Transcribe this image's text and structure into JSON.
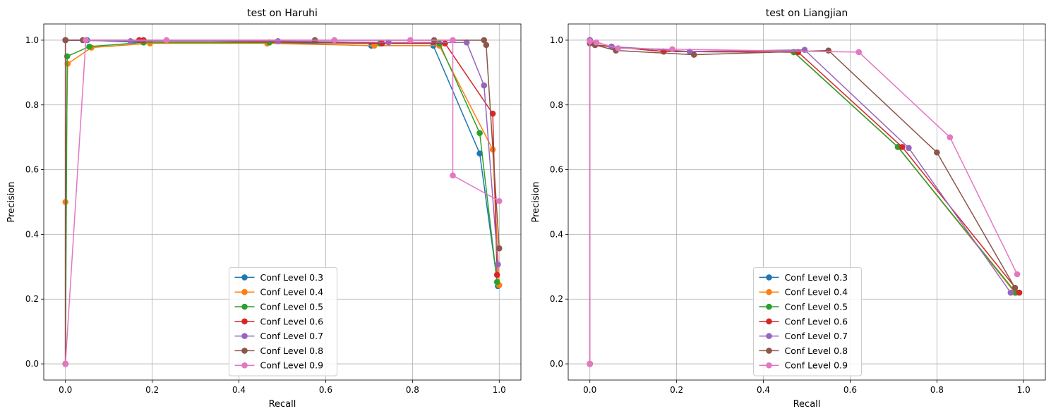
{
  "chart_data": [
    {
      "type": "line",
      "title": "test on Haruhi",
      "xlabel": "Recall",
      "ylabel": "Precision",
      "xlim": [
        -0.05,
        1.05
      ],
      "ylim": [
        -0.05,
        1.05
      ],
      "xticks": [
        "0.0",
        "0.2",
        "0.4",
        "0.6",
        "0.8",
        "1.0"
      ],
      "yticks": [
        "0.0",
        "0.2",
        "0.4",
        "0.6",
        "0.8",
        "1.0"
      ],
      "grid": true,
      "legend_position": "lower center",
      "series": [
        {
          "name": "Conf Level 0.3",
          "color": "#1f77b4",
          "points": [
            [
              0,
              0
            ],
            [
              0,
              1.0
            ],
            [
              0.05,
              1.0
            ],
            [
              0.18,
              0.993
            ],
            [
              0.47,
              0.993
            ],
            [
              0.705,
              0.983
            ],
            [
              0.848,
              0.983
            ],
            [
              0.955,
              0.65
            ],
            [
              0.997,
              0.24
            ]
          ]
        },
        {
          "name": "Conf Level 0.4",
          "color": "#ff7f0e",
          "points": [
            [
              0,
              0
            ],
            [
              0,
              0.5
            ],
            [
              0.005,
              0.927
            ],
            [
              0.06,
              0.977
            ],
            [
              0.195,
              0.99
            ],
            [
              0.465,
              0.99
            ],
            [
              0.712,
              0.983
            ],
            [
              0.862,
              0.983
            ],
            [
              0.985,
              0.662
            ],
            [
              1.0,
              0.243
            ]
          ]
        },
        {
          "name": "Conf Level 0.5",
          "color": "#2ca02c",
          "points": [
            [
              0,
              0
            ],
            [
              0.004,
              0.95
            ],
            [
              0.055,
              0.98
            ],
            [
              0.18,
              0.993
            ],
            [
              0.47,
              0.993
            ],
            [
              0.725,
              0.99
            ],
            [
              0.862,
              0.99
            ],
            [
              0.955,
              0.713
            ],
            [
              0.995,
              0.253
            ]
          ]
        },
        {
          "name": "Conf Level 0.6",
          "color": "#d62728",
          "points": [
            [
              0,
              0
            ],
            [
              0,
              1.0
            ],
            [
              0.17,
              1.0
            ],
            [
              0.18,
              1.0
            ],
            [
              0.73,
              0.99
            ],
            [
              0.875,
              0.99
            ],
            [
              0.985,
              0.773
            ],
            [
              0.995,
              0.275
            ]
          ]
        },
        {
          "name": "Conf Level 0.7",
          "color": "#9467bd",
          "points": [
            [
              0,
              0
            ],
            [
              0,
              1.0
            ],
            [
              0.15,
              0.997
            ],
            [
              0.49,
              0.997
            ],
            [
              0.745,
              0.993
            ],
            [
              0.925,
              0.993
            ],
            [
              0.965,
              0.86
            ],
            [
              0.997,
              0.307
            ]
          ]
        },
        {
          "name": "Conf Level 0.8",
          "color": "#8c564b",
          "points": [
            [
              0,
              0
            ],
            [
              0,
              1.0
            ],
            [
              0.04,
              1.0
            ],
            [
              0.575,
              1.0
            ],
            [
              0.85,
              1.0
            ],
            [
              0.965,
              1.0
            ],
            [
              0.97,
              0.985
            ],
            [
              1.0,
              0.357
            ]
          ]
        },
        {
          "name": "Conf Level 0.9",
          "color": "#e377c2",
          "points": [
            [
              0,
              0
            ],
            [
              0.047,
              1.0
            ],
            [
              0.233,
              1.0
            ],
            [
              0.62,
              1.0
            ],
            [
              0.795,
              1.0
            ],
            [
              0.893,
              1.0
            ],
            [
              0.893,
              0.582
            ],
            [
              1.0,
              0.503
            ]
          ]
        }
      ]
    },
    {
      "type": "line",
      "title": "test on Liangjian",
      "xlabel": "Recall",
      "ylabel": "Precision",
      "xlim": [
        -0.05,
        1.05
      ],
      "ylim": [
        -0.05,
        1.05
      ],
      "xticks": [
        "0.0",
        "0.2",
        "0.4",
        "0.6",
        "0.8",
        "1.0"
      ],
      "yticks": [
        "0.0",
        "0.2",
        "0.4",
        "0.6",
        "0.8",
        "1.0"
      ],
      "grid": true,
      "legend_position": "lower center",
      "series": [
        {
          "name": "Conf Level 0.3",
          "color": "#1f77b4",
          "points": [
            [
              0,
              0
            ],
            [
              0,
              1.0
            ],
            [
              0.012,
              0.985
            ],
            [
              0.05,
              0.98
            ],
            [
              0.17,
              0.965
            ],
            [
              0.47,
              0.963
            ],
            [
              0.71,
              0.67
            ],
            [
              0.98,
              0.22
            ]
          ]
        },
        {
          "name": "Conf Level 0.4",
          "color": "#ff7f0e",
          "points": [
            [
              0,
              0
            ],
            [
              0,
              1.0
            ],
            [
              0.012,
              0.985
            ],
            [
              0.05,
              0.98
            ],
            [
              0.17,
              0.965
            ],
            [
              0.47,
              0.963
            ],
            [
              0.71,
              0.67
            ],
            [
              0.98,
              0.22
            ]
          ]
        },
        {
          "name": "Conf Level 0.5",
          "color": "#2ca02c",
          "points": [
            [
              0,
              0
            ],
            [
              0,
              1.0
            ],
            [
              0.012,
              0.985
            ],
            [
              0.05,
              0.98
            ],
            [
              0.17,
              0.965
            ],
            [
              0.47,
              0.963
            ],
            [
              0.71,
              0.67
            ],
            [
              0.982,
              0.22
            ]
          ]
        },
        {
          "name": "Conf Level 0.6",
          "color": "#d62728",
          "points": [
            [
              0,
              0
            ],
            [
              0,
              1.0
            ],
            [
              0.012,
              0.985
            ],
            [
              0.05,
              0.98
            ],
            [
              0.17,
              0.965
            ],
            [
              0.48,
              0.963
            ],
            [
              0.72,
              0.67
            ],
            [
              0.99,
              0.22
            ]
          ]
        },
        {
          "name": "Conf Level 0.7",
          "color": "#9467bd",
          "points": [
            [
              0,
              0
            ],
            [
              0,
              1.0
            ],
            [
              0.05,
              0.98
            ],
            [
              0.23,
              0.965
            ],
            [
              0.495,
              0.97
            ],
            [
              0.735,
              0.667
            ],
            [
              0.97,
              0.22
            ]
          ]
        },
        {
          "name": "Conf Level 0.8",
          "color": "#8c564b",
          "points": [
            [
              0,
              0
            ],
            [
              0,
              0.99
            ],
            [
              0.012,
              0.985
            ],
            [
              0.06,
              0.968
            ],
            [
              0.24,
              0.955
            ],
            [
              0.55,
              0.968
            ],
            [
              0.8,
              0.653
            ],
            [
              0.98,
              0.235
            ]
          ]
        },
        {
          "name": "Conf Level 0.9",
          "color": "#e377c2",
          "points": [
            [
              0,
              0
            ],
            [
              0,
              0.997
            ],
            [
              0.015,
              0.993
            ],
            [
              0.065,
              0.975
            ],
            [
              0.19,
              0.972
            ],
            [
              0.62,
              0.963
            ],
            [
              0.83,
              0.7
            ],
            [
              0.985,
              0.277
            ]
          ]
        }
      ]
    }
  ]
}
